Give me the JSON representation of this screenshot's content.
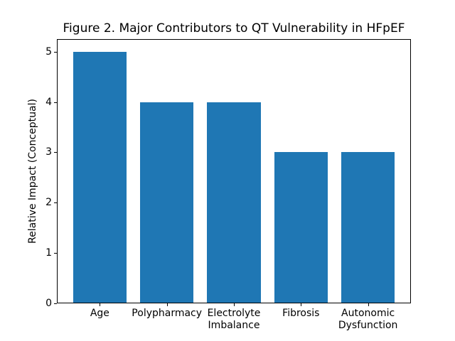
{
  "chart_data": {
    "type": "bar",
    "title": "Figure 2. Major Contributors to QT Vulnerability in HFpEF",
    "categories": [
      "Age",
      "Polypharmacy",
      "Electrolyte\nImbalance",
      "Fibrosis",
      "Autonomic\nDysfunction"
    ],
    "values": [
      5,
      4,
      4,
      3,
      3
    ],
    "xlabel": "",
    "ylabel": "Relative Impact (Conceptual)",
    "yticks": [
      0,
      1,
      2,
      3,
      4,
      5
    ],
    "ylim": [
      0,
      5.25
    ],
    "xlim": [
      -0.64,
      4.64
    ],
    "bar_color": "#1f77b4",
    "bar_width_fraction": 0.8,
    "grid": false,
    "legend_position": "none",
    "background_color": "#ffffff",
    "spine_color": "#000000"
  }
}
